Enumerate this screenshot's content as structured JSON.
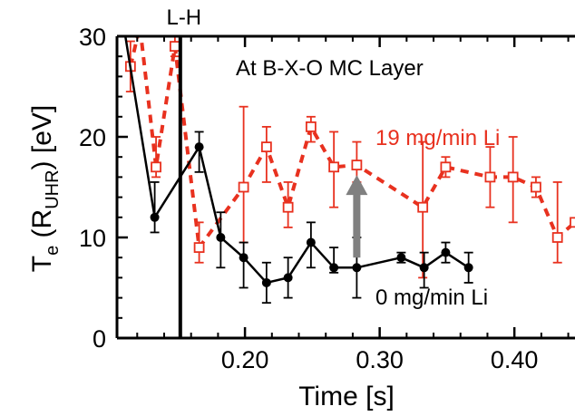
{
  "chart_data": {
    "type": "line",
    "title": "",
    "xlabel": "Time [s]",
    "ylabel": {
      "main": "T",
      "sub": "e",
      "mid": " (R",
      "sub2": "UHR",
      "end": ") [eV]"
    },
    "xlim": [
      0.105,
      0.445
    ],
    "ylim": [
      0,
      30
    ],
    "x_ticks": [
      0.2,
      0.3,
      0.4
    ],
    "x_tick_labels": [
      "0.20",
      "0.30",
      "0.40"
    ],
    "y_ticks": [
      0,
      10,
      20,
      30
    ],
    "y_tick_labels": [
      "0",
      "10",
      "20",
      "30"
    ],
    "grid": false,
    "vline": {
      "x": 0.152,
      "label": "L-H"
    },
    "annotations": {
      "layer": "At B-X-O MC Layer",
      "red_label": "19 mg/min Li",
      "black_label": "0 mg/min Li"
    },
    "arrow": {
      "x": 0.283,
      "y_from": 8.0,
      "y_to": 16.2,
      "color": "#808080"
    },
    "series": [
      {
        "name": "19 mg/min Li",
        "color": "#e8311f",
        "marker": "square-open",
        "line": "dashed",
        "points": [
          {
            "x": 0.115,
            "y": 27.0,
            "lo": 24.5,
            "hi": 29.5
          },
          {
            "x": 0.122,
            "y": 31.0,
            "lo": 31.0,
            "hi": 31.0
          },
          {
            "x": 0.134,
            "y": 17.0,
            "lo": 16.0,
            "hi": 20.0
          },
          {
            "x": 0.148,
            "y": 29.0,
            "lo": 28.0,
            "hi": 30.5
          },
          {
            "x": 0.166,
            "y": 9.0,
            "lo": 7.5,
            "hi": 11.5
          },
          {
            "x": 0.199,
            "y": 15.0,
            "lo": 9.5,
            "hi": 23.0
          },
          {
            "x": 0.216,
            "y": 19.0,
            "lo": 15.5,
            "hi": 21.0
          },
          {
            "x": 0.232,
            "y": 13.0,
            "lo": 11.0,
            "hi": 15.5
          },
          {
            "x": 0.249,
            "y": 21.0,
            "lo": 19.5,
            "hi": 22.0
          },
          {
            "x": 0.266,
            "y": 17.0,
            "lo": 13.0,
            "hi": 20.5
          },
          {
            "x": 0.283,
            "y": 17.2,
            "lo": 15.5,
            "hi": 19.5
          },
          {
            "x": 0.332,
            "y": 13.0,
            "lo": 6.0,
            "hi": 19.5
          },
          {
            "x": 0.349,
            "y": 17.0,
            "lo": 16.0,
            "hi": 18.0
          },
          {
            "x": 0.382,
            "y": 16.0,
            "lo": 13.0,
            "hi": 19.0
          },
          {
            "x": 0.399,
            "y": 16.0,
            "lo": 11.5,
            "hi": 20.0
          },
          {
            "x": 0.416,
            "y": 15.0,
            "lo": 14.0,
            "hi": 16.0
          },
          {
            "x": 0.432,
            "y": 10.0,
            "lo": 7.5,
            "hi": 15.5
          },
          {
            "x": 0.445,
            "y": 11.5,
            "lo": 11.5,
            "hi": 11.5
          }
        ]
      },
      {
        "name": "0 mg/min Li",
        "color": "#000000",
        "marker": "circle-filled",
        "line": "solid",
        "points": [
          {
            "x": 0.11,
            "y": 31.0,
            "lo": 31.0,
            "hi": 31.0
          },
          {
            "x": 0.133,
            "y": 12.0,
            "lo": 10.5,
            "hi": 15.5
          },
          {
            "x": 0.166,
            "y": 19.0,
            "lo": 16.5,
            "hi": 20.5
          },
          {
            "x": 0.182,
            "y": 10.0,
            "lo": 7.0,
            "hi": 12.5
          },
          {
            "x": 0.199,
            "y": 8.0,
            "lo": 5.0,
            "hi": 9.5
          },
          {
            "x": 0.216,
            "y": 5.5,
            "lo": 3.5,
            "hi": 7.5
          },
          {
            "x": 0.232,
            "y": 6.0,
            "lo": 4.0,
            "hi": 8.0
          },
          {
            "x": 0.249,
            "y": 9.5,
            "lo": 7.0,
            "hi": 11.5
          },
          {
            "x": 0.266,
            "y": 7.0,
            "lo": 6.5,
            "hi": 9.0
          },
          {
            "x": 0.283,
            "y": 7.0,
            "lo": 4.0,
            "hi": 10.0
          },
          {
            "x": 0.316,
            "y": 8.0,
            "lo": 7.5,
            "hi": 8.5
          },
          {
            "x": 0.333,
            "y": 7.0,
            "lo": 5.0,
            "hi": 8.5
          },
          {
            "x": 0.349,
            "y": 8.5,
            "lo": 7.5,
            "hi": 9.5
          },
          {
            "x": 0.366,
            "y": 7.0,
            "lo": 5.5,
            "hi": 8.5
          }
        ]
      }
    ]
  }
}
